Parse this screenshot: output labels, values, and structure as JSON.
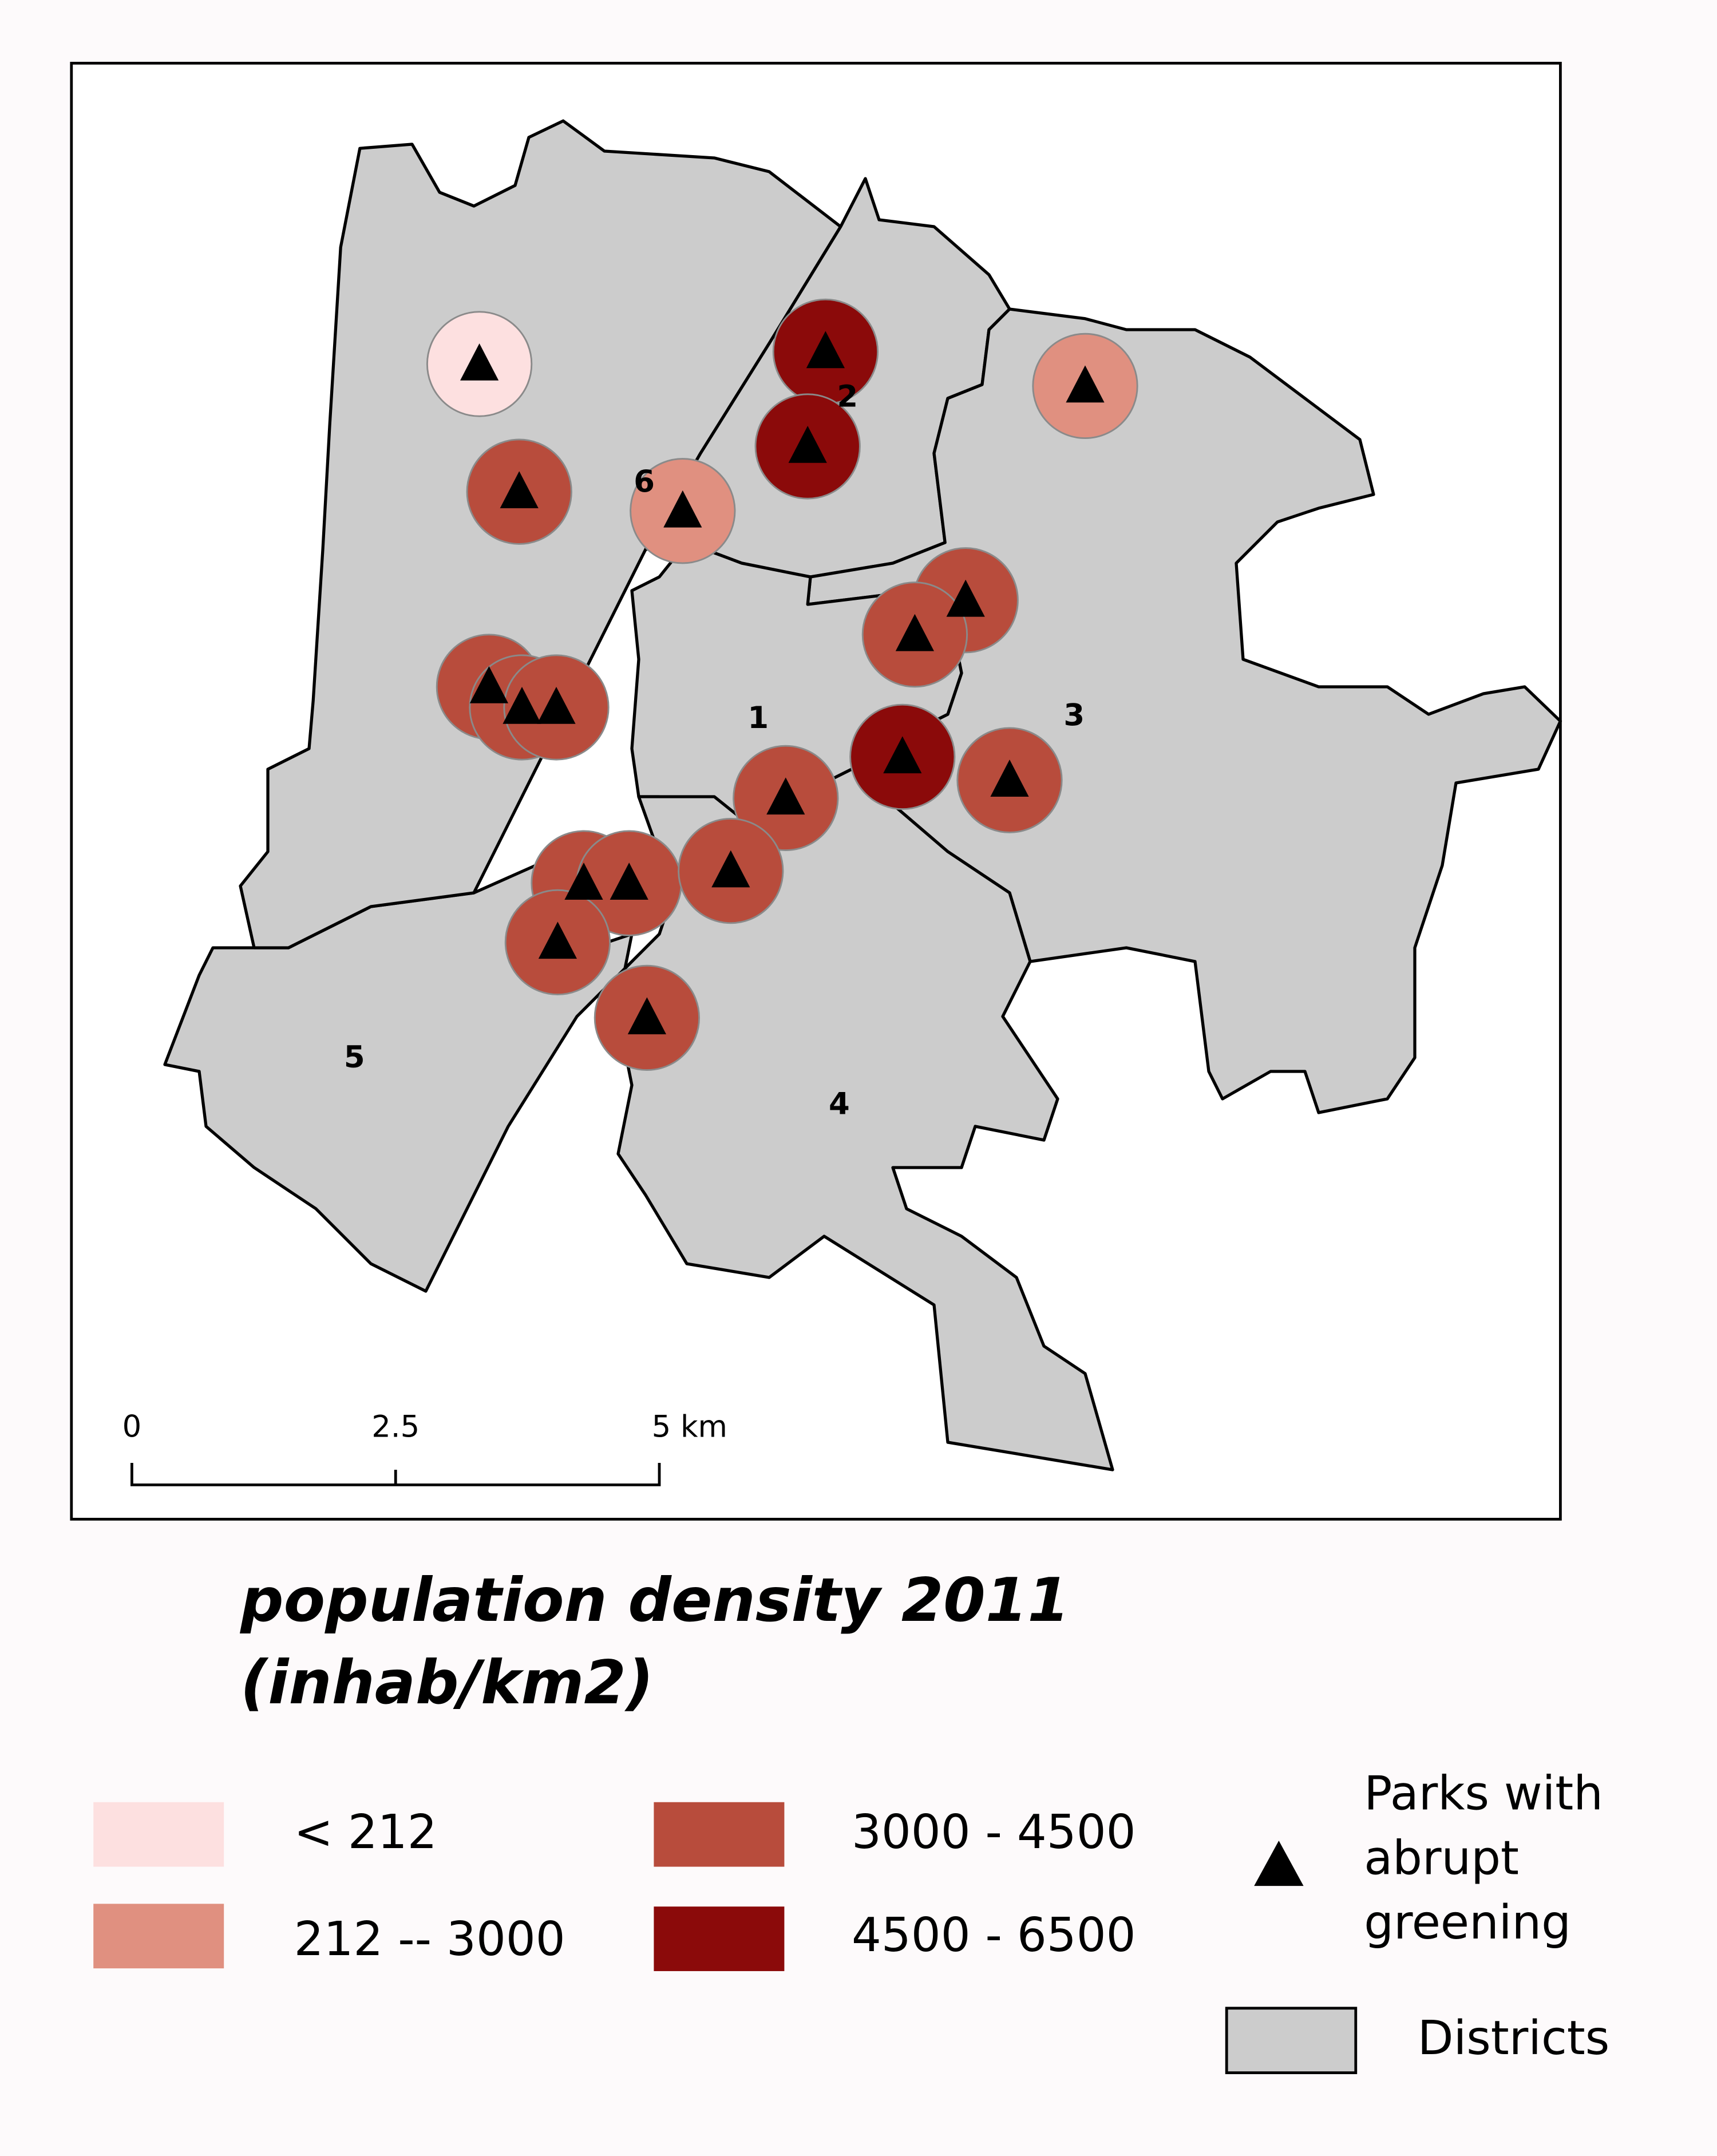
{
  "title": "population density 2011",
  "title_unit": "(inhab/km2)",
  "district_labels": [
    "1",
    "2",
    "3",
    "4",
    "5",
    "6"
  ],
  "scale_bar": [
    "0",
    "2.5",
    "5 km"
  ],
  "legend": {
    "classes": [
      "< 212",
      "212 -- 3000",
      "3000 - 4500",
      "4500 - 6500"
    ],
    "parks": [
      "Parks with",
      "abrupt",
      "greening"
    ],
    "districts": "Districts"
  }
}
